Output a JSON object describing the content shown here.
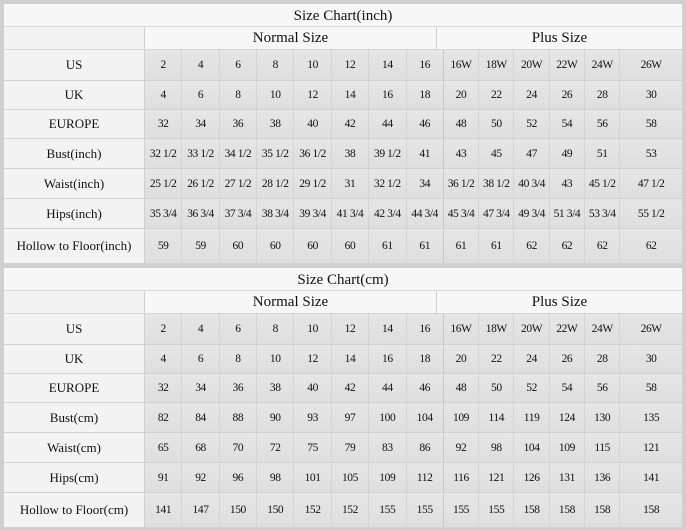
{
  "charts": [
    {
      "title": "Size Chart(inch)",
      "groups": [
        "Normal Size",
        "Plus Size"
      ],
      "normal_count": 8,
      "rows": [
        {
          "label": "US",
          "values": [
            "2",
            "4",
            "6",
            "8",
            "10",
            "12",
            "14",
            "16",
            "16W",
            "18W",
            "20W",
            "22W",
            "24W",
            "26W"
          ]
        },
        {
          "label": "UK",
          "values": [
            "4",
            "6",
            "8",
            "10",
            "12",
            "14",
            "16",
            "18",
            "20",
            "22",
            "24",
            "26",
            "28",
            "30"
          ]
        },
        {
          "label": "EUROPE",
          "values": [
            "32",
            "34",
            "36",
            "38",
            "40",
            "42",
            "44",
            "46",
            "48",
            "50",
            "52",
            "54",
            "56",
            "58"
          ]
        },
        {
          "label": "Bust(inch)",
          "values": [
            "32 1/2",
            "33 1/2",
            "34 1/2",
            "35 1/2",
            "36 1/2",
            "38",
            "39 1/2",
            "41",
            "43",
            "45",
            "47",
            "49",
            "51",
            "53"
          ]
        },
        {
          "label": "Waist(inch)",
          "values": [
            "25 1/2",
            "26 1/2",
            "27 1/2",
            "28 1/2",
            "29 1/2",
            "31",
            "32 1/2",
            "34",
            "36 1/2",
            "38 1/2",
            "40 3/4",
            "43",
            "45 1/2",
            "47 1/2"
          ]
        },
        {
          "label": "Hips(inch)",
          "values": [
            "35 3/4",
            "36 3/4",
            "37 3/4",
            "38 3/4",
            "39 3/4",
            "41 3/4",
            "42 3/4",
            "44 3/4",
            "45 3/4",
            "47 3/4",
            "49 3/4",
            "51 3/4",
            "53 3/4",
            "55 1/2"
          ]
        },
        {
          "label": "Hollow to Floor(inch)",
          "values": [
            "59",
            "59",
            "60",
            "60",
            "60",
            "60",
            "61",
            "61",
            "61",
            "61",
            "62",
            "62",
            "62",
            "62"
          ]
        }
      ]
    },
    {
      "title": "Size Chart(cm)",
      "groups": [
        "Normal Size",
        "Plus Size"
      ],
      "normal_count": 8,
      "rows": [
        {
          "label": "US",
          "values": [
            "2",
            "4",
            "6",
            "8",
            "10",
            "12",
            "14",
            "16",
            "16W",
            "18W",
            "20W",
            "22W",
            "24W",
            "26W"
          ]
        },
        {
          "label": "UK",
          "values": [
            "4",
            "6",
            "8",
            "10",
            "12",
            "14",
            "16",
            "18",
            "20",
            "22",
            "24",
            "26",
            "28",
            "30"
          ]
        },
        {
          "label": "EUROPE",
          "values": [
            "32",
            "34",
            "36",
            "38",
            "40",
            "42",
            "44",
            "46",
            "48",
            "50",
            "52",
            "54",
            "56",
            "58"
          ]
        },
        {
          "label": "Bust(cm)",
          "values": [
            "82",
            "84",
            "88",
            "90",
            "93",
            "97",
            "100",
            "104",
            "109",
            "114",
            "119",
            "124",
            "130",
            "135"
          ]
        },
        {
          "label": "Waist(cm)",
          "values": [
            "65",
            "68",
            "70",
            "72",
            "75",
            "79",
            "83",
            "86",
            "92",
            "98",
            "104",
            "109",
            "115",
            "121"
          ]
        },
        {
          "label": "Hips(cm)",
          "values": [
            "91",
            "92",
            "96",
            "98",
            "101",
            "105",
            "109",
            "112",
            "116",
            "121",
            "126",
            "131",
            "136",
            "141"
          ]
        },
        {
          "label": "Hollow to Floor(cm)",
          "values": [
            "141",
            "147",
            "150",
            "150",
            "152",
            "152",
            "155",
            "155",
            "155",
            "155",
            "158",
            "158",
            "158",
            "158"
          ]
        }
      ]
    }
  ]
}
